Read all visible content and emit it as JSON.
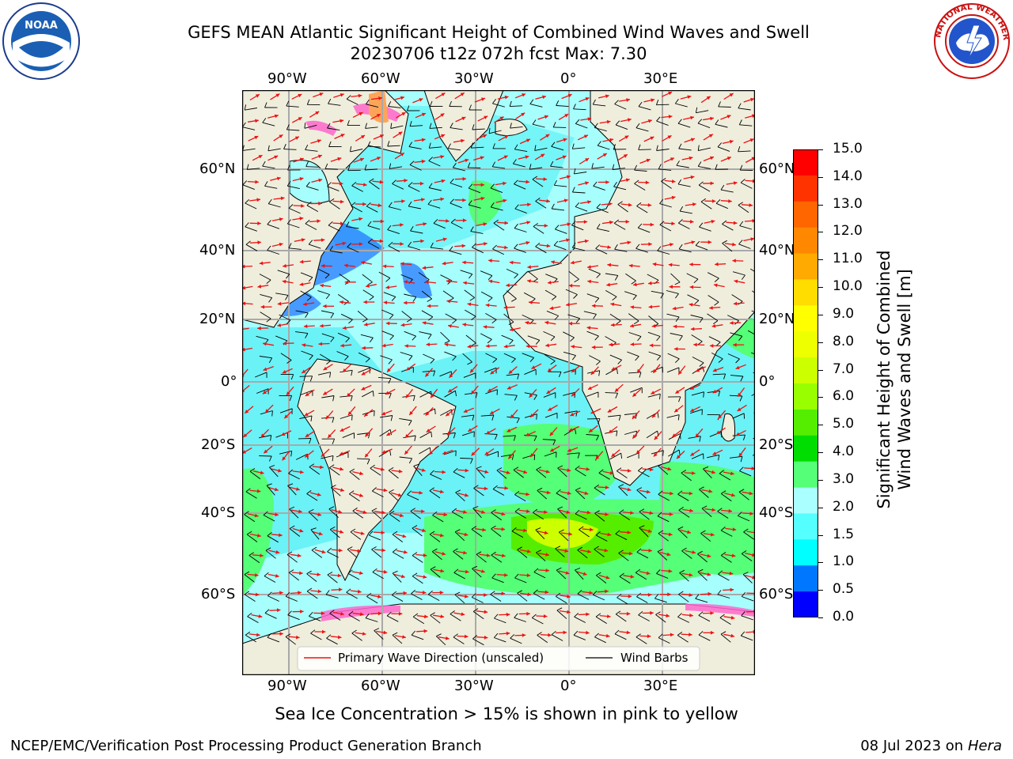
{
  "header": {
    "title_line1": "GEFS MEAN Atlantic Significant Height of Combined Wind Waves and Swell",
    "title_line2": "20230706 t12z 072h fcst   Max: 7.30"
  },
  "map": {
    "lon_labels": [
      "90°W",
      "60°W",
      "30°W",
      "0°",
      "30°E"
    ],
    "lat_labels": [
      "60°N",
      "40°N",
      "20°N",
      "0°",
      "20°S",
      "40°S",
      "60°S"
    ],
    "colors": {
      "land": "#efeedd",
      "ocean_low": "#38e8f0",
      "ocean_mid": "#a6fffd",
      "ocean_high": "#00e31b",
      "wave_arrow": "#ee1111",
      "wind_barb": "#000000",
      "sea_ice": "#ff66cc"
    },
    "legend": {
      "wave_label": "Primary Wave Direction (unscaled)",
      "barb_label": "Wind Barbs"
    }
  },
  "colorbar": {
    "label_line1": "Significant Height of Combined",
    "label_line2": "Wind Waves and Swell [m]",
    "ticks": [
      "15.0",
      "14.0",
      "13.0",
      "12.0",
      "11.0",
      "10.0",
      "9.0",
      "8.0",
      "7.0",
      "6.0",
      "5.0",
      "4.0",
      "3.0",
      "2.0",
      "1.5",
      "1.0",
      "0.5",
      "0.0"
    ],
    "colors_top_to_bottom": [
      "#ff0000",
      "#ff3300",
      "#ff6600",
      "#ff8800",
      "#ffaa00",
      "#ffdd00",
      "#ffff00",
      "#eeff00",
      "#ccff00",
      "#99ff00",
      "#55ee00",
      "#00dd00",
      "#55ff77",
      "#aaffff",
      "#55ffff",
      "#00ffff",
      "#0077ff",
      "#0000ff"
    ]
  },
  "caption": "Sea Ice Concentration > 15% is shown in pink to yellow",
  "footer": {
    "left": "NCEP/EMC/Verification Post Processing Product Generation Branch",
    "right_date": "08 Jul 2023 on ",
    "right_host": "Hera"
  },
  "logos": {
    "left_icon": "noaa-logo-icon",
    "right_icon": "nws-logo-icon",
    "left_text": "NOAA",
    "right_text": "NATIONAL WEATHER SERVICE"
  }
}
